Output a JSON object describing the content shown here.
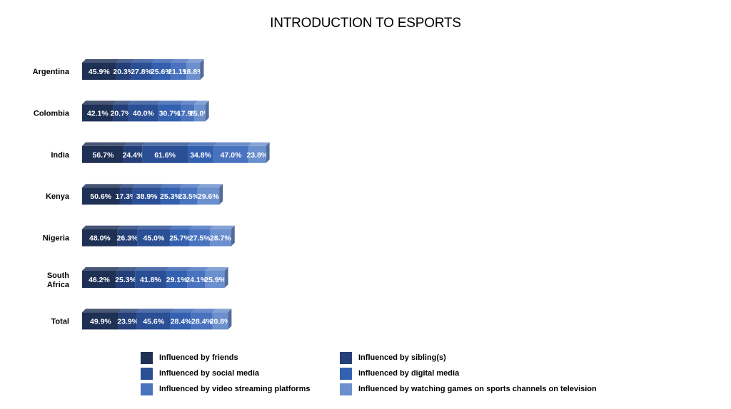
{
  "chart_data": {
    "type": "bar",
    "stacked": true,
    "orientation": "horizontal",
    "title": "INTRODUCTION TO ESPORTS",
    "categories": [
      "Argentina",
      "Colombia",
      "India",
      "Kenya",
      "Nigeria",
      "South Africa",
      "Total"
    ],
    "series": [
      {
        "name": "Influenced by friends",
        "color": "#1f3055",
        "values": [
          45.9,
          42.1,
          56.7,
          50.6,
          48.0,
          46.2,
          49.9
        ]
      },
      {
        "name": "Influenced by sibling(s)",
        "color": "#253f78",
        "values": [
          20.3,
          20.7,
          24.4,
          17.3,
          26.3,
          25.3,
          23.9
        ]
      },
      {
        "name": "Influenced by social media",
        "color": "#2b4f95",
        "values": [
          27.8,
          40.0,
          61.6,
          38.9,
          45.0,
          41.8,
          45.6
        ]
      },
      {
        "name": "Influenced by digital media",
        "color": "#3460b0",
        "values": [
          25.6,
          30.7,
          34.8,
          25.3,
          25.7,
          29.1,
          28.4
        ]
      },
      {
        "name": "Influenced by video streaming platforms",
        "color": "#4a73bf",
        "values": [
          21.1,
          17.9,
          47.0,
          23.5,
          27.5,
          24.1,
          28.4
        ]
      },
      {
        "name": "Influenced by watching games on sports channels on television",
        "color": "#6c8fcd",
        "values": [
          18.8,
          15.0,
          23.8,
          29.6,
          28.7,
          25.9,
          20.8
        ]
      }
    ],
    "data_labels": true,
    "value_format": "percent",
    "legend_position": "bottom",
    "grid": false
  }
}
